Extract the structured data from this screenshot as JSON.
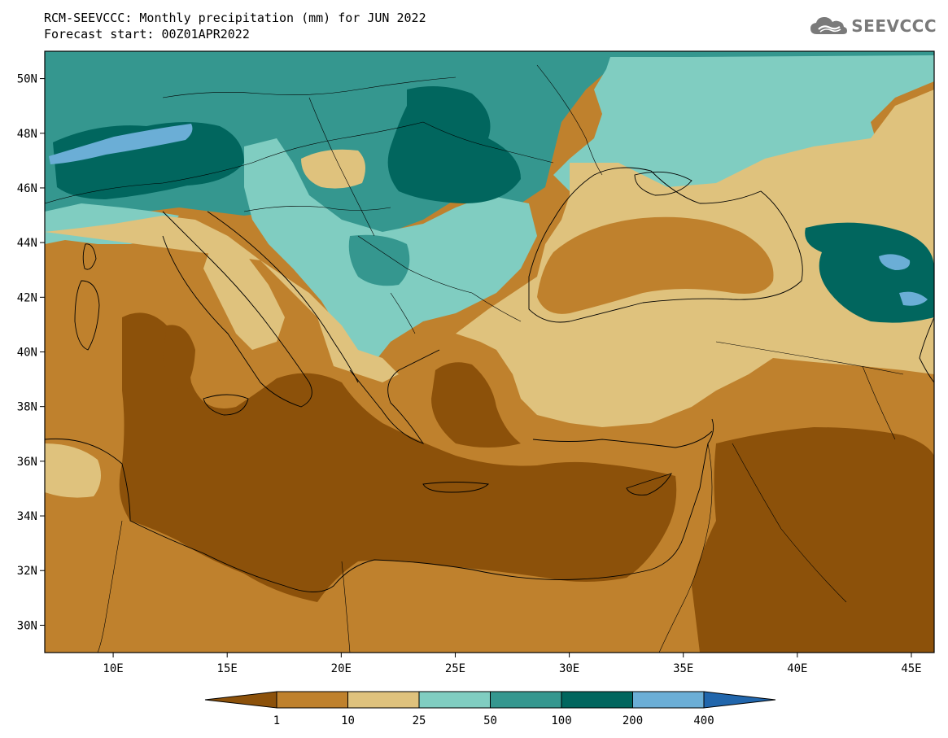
{
  "header": {
    "title": "RCM-SEEVCCC: Monthly precipitation (mm) for JUN 2022",
    "subtitle": "Forecast start: 00Z01APR2022"
  },
  "logo": {
    "text": "SEEVCCC",
    "icon": "cloud-icon"
  },
  "map": {
    "lon_range": [
      7,
      46
    ],
    "lat_range": [
      29,
      51
    ],
    "lat_ticks": [
      {
        "value": 30,
        "label": "30N"
      },
      {
        "value": 32,
        "label": "32N"
      },
      {
        "value": 34,
        "label": "34N"
      },
      {
        "value": 36,
        "label": "36N"
      },
      {
        "value": 38,
        "label": "38N"
      },
      {
        "value": 40,
        "label": "40N"
      },
      {
        "value": 42,
        "label": "42N"
      },
      {
        "value": 44,
        "label": "44N"
      },
      {
        "value": 46,
        "label": "46N"
      },
      {
        "value": 48,
        "label": "48N"
      },
      {
        "value": 50,
        "label": "50N"
      }
    ],
    "lon_ticks": [
      {
        "value": 10,
        "label": "10E"
      },
      {
        "value": 15,
        "label": "15E"
      },
      {
        "value": 20,
        "label": "20E"
      },
      {
        "value": 25,
        "label": "25E"
      },
      {
        "value": 30,
        "label": "30E"
      },
      {
        "value": 35,
        "label": "35E"
      },
      {
        "value": 40,
        "label": "40E"
      },
      {
        "value": 45,
        "label": "45E"
      }
    ]
  },
  "colorbar": {
    "colors": [
      "#8c510a",
      "#bf812d",
      "#dfc27d",
      "#80cdc1",
      "#35978f",
      "#01665e",
      "#6baed6",
      "#2166ac"
    ],
    "labels": [
      "1",
      "10",
      "25",
      "50",
      "100",
      "200",
      "400"
    ]
  }
}
